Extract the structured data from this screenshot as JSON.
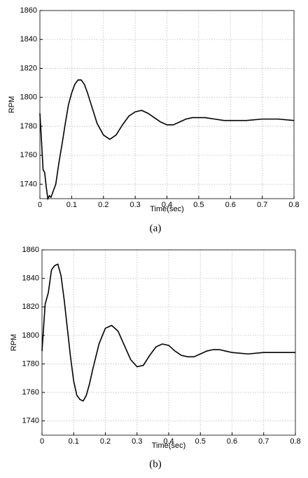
{
  "chart_data": [
    {
      "type": "line",
      "caption": "(a)",
      "xlabel": "Time(sec)",
      "ylabel": "RPM",
      "x": [
        0,
        0.005,
        0.01,
        0.015,
        0.02,
        0.025,
        0.03,
        0.035,
        0.04,
        0.05,
        0.06,
        0.07,
        0.08,
        0.09,
        0.1,
        0.11,
        0.12,
        0.13,
        0.14,
        0.15,
        0.16,
        0.18,
        0.2,
        0.22,
        0.24,
        0.26,
        0.28,
        0.3,
        0.32,
        0.34,
        0.36,
        0.38,
        0.4,
        0.42,
        0.44,
        0.46,
        0.48,
        0.5,
        0.52,
        0.55,
        0.58,
        0.6,
        0.62,
        0.65,
        0.7,
        0.75,
        0.8
      ],
      "series": [
        {
          "color": "#000000",
          "values": [
            1789,
            1770,
            1750,
            1748,
            1738,
            1730,
            1732,
            1731,
            1734,
            1740,
            1755,
            1768,
            1782,
            1795,
            1803,
            1809,
            1812,
            1812,
            1809,
            1803,
            1796,
            1782,
            1774,
            1771,
            1774,
            1781,
            1787,
            1790,
            1791,
            1789,
            1786,
            1783,
            1781,
            1781,
            1783,
            1785,
            1786,
            1786,
            1786,
            1785,
            1784,
            1784,
            1784,
            1784,
            1785,
            1785,
            1784
          ]
        }
      ],
      "xlim": [
        0,
        0.8
      ],
      "xticks": [
        0,
        0.1,
        0.2,
        0.3,
        0.4,
        0.5,
        0.6,
        0.7,
        0.8
      ],
      "ylim": [
        1730,
        1860
      ],
      "yticks": [
        1740,
        1760,
        1780,
        1800,
        1820,
        1840,
        1860
      ],
      "grid": true
    },
    {
      "type": "line",
      "caption": "(b)",
      "xlabel": "Time(sec)",
      "ylabel": "RPM",
      "x": [
        0,
        0.01,
        0.02,
        0.03,
        0.04,
        0.05,
        0.06,
        0.07,
        0.08,
        0.09,
        0.1,
        0.11,
        0.12,
        0.13,
        0.14,
        0.15,
        0.16,
        0.18,
        0.2,
        0.22,
        0.24,
        0.26,
        0.28,
        0.3,
        0.32,
        0.34,
        0.36,
        0.38,
        0.4,
        0.42,
        0.44,
        0.46,
        0.48,
        0.5,
        0.52,
        0.54,
        0.56,
        0.58,
        0.6,
        0.65,
        0.7,
        0.75,
        0.8
      ],
      "series": [
        {
          "color": "#000000",
          "values": [
            1789,
            1822,
            1830,
            1846,
            1849,
            1850,
            1842,
            1825,
            1805,
            1785,
            1768,
            1758,
            1755,
            1754,
            1758,
            1766,
            1776,
            1794,
            1805,
            1807,
            1803,
            1793,
            1783,
            1778,
            1779,
            1786,
            1792,
            1794,
            1793,
            1789,
            1786,
            1785,
            1785,
            1787,
            1789,
            1790,
            1790,
            1789,
            1788,
            1787,
            1788,
            1788,
            1788
          ]
        }
      ],
      "xlim": [
        0,
        0.8
      ],
      "xticks": [
        0,
        0.1,
        0.2,
        0.3,
        0.4,
        0.5,
        0.6,
        0.7,
        0.8
      ],
      "ylim": [
        1730,
        1860
      ],
      "yticks": [
        1740,
        1760,
        1780,
        1800,
        1820,
        1840,
        1860
      ],
      "grid": true
    }
  ]
}
